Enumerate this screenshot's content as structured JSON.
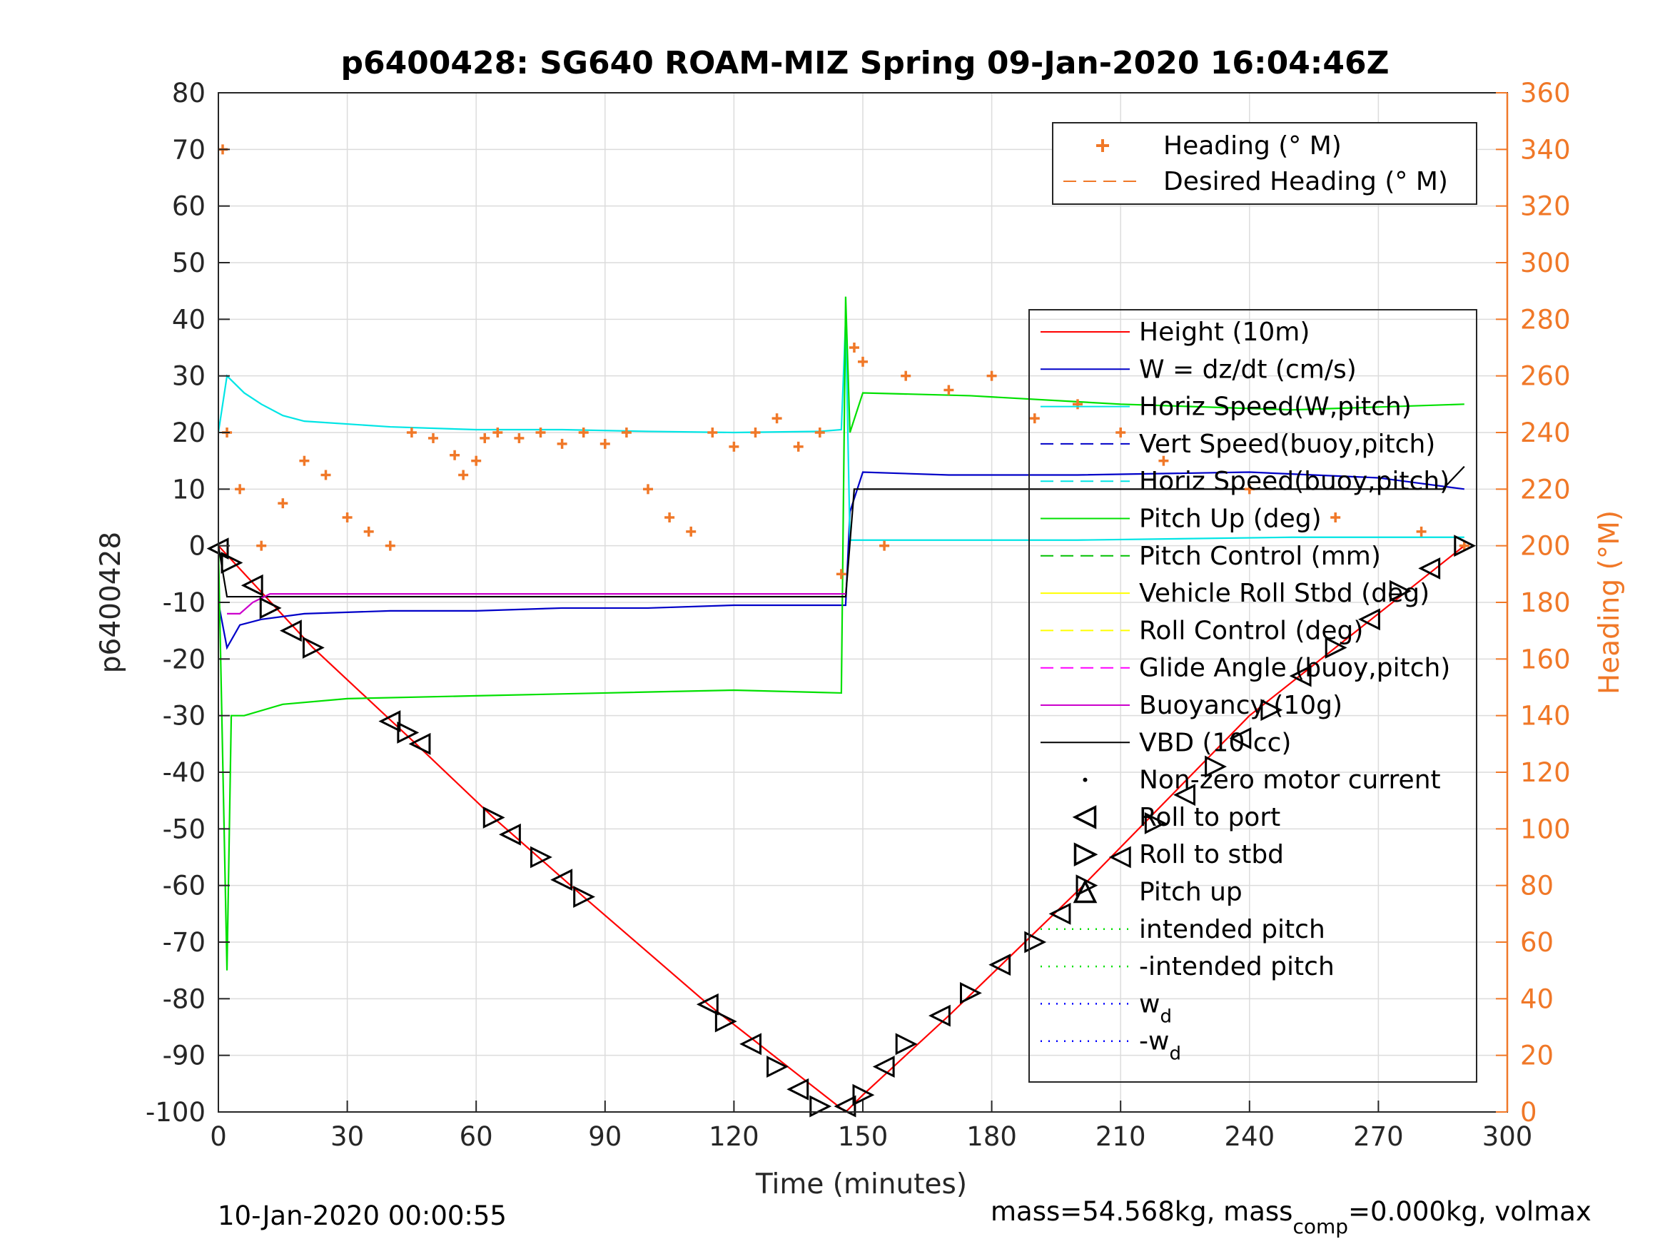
{
  "chart_data": {
    "type": "line",
    "title": "p6400428: SG640 ROAM-MIZ Spring 09-Jan-2020 16:04:46Z",
    "xlabel": "Time (minutes)",
    "ylabel": "p6400428",
    "ylabel_right": "Heading (°M)",
    "xlim": [
      0,
      300
    ],
    "ylim": [
      -100,
      80
    ],
    "ylim_right": [
      0,
      360
    ],
    "x_ticks": [
      "0",
      "30",
      "60",
      "90",
      "120",
      "150",
      "180",
      "210",
      "240",
      "270",
      "300"
    ],
    "y_ticks": [
      "80",
      "70",
      "60",
      "50",
      "40",
      "30",
      "20",
      "10",
      "0",
      "-10",
      "-20",
      "-30",
      "-40",
      "-50",
      "-60",
      "-70",
      "-80",
      "-90",
      "-100"
    ],
    "y_ticks_right": [
      "360",
      "340",
      "320",
      "300",
      "280",
      "260",
      "240",
      "220",
      "200",
      "180",
      "160",
      "140",
      "120",
      "100",
      "80",
      "60",
      "40",
      "20",
      "0"
    ],
    "grid": true,
    "footer_left": "10-Jan-2020 00:00:55",
    "footer_right_prefix": "mass=54.568kg, mass",
    "footer_right_sub": "comp",
    "footer_right_suffix": "=0.000kg, volmax",
    "legend_top": {
      "placement": "top-right",
      "entries": [
        {
          "label": "Heading (° M)",
          "color": "#f07828",
          "style": "plus"
        },
        {
          "label": "Desired Heading (° M)",
          "color": "#f07828",
          "style": "dashed"
        }
      ]
    },
    "legend_main": {
      "placement": "right",
      "entries": [
        {
          "label": "Height (10m)",
          "color": "#ff0000",
          "style": "solid"
        },
        {
          "label": "W = dz/dt (cm/s)",
          "color": "#0000c8",
          "style": "solid"
        },
        {
          "label": "Horiz Speed(W,pitch)",
          "color": "#00e5e5",
          "style": "solid"
        },
        {
          "label": "Vert Speed(buoy,pitch)",
          "color": "#0000c8",
          "style": "dashed"
        },
        {
          "label": "Horiz Speed(buoy,pitch)",
          "color": "#00e5e5",
          "style": "dashed"
        },
        {
          "label": "Pitch Up (deg)",
          "color": "#00e000",
          "style": "solid"
        },
        {
          "label": "Pitch Control (mm)",
          "color": "#00c000",
          "style": "dashed"
        },
        {
          "label": "Vehicle Roll Stbd (deg)",
          "color": "#ffff00",
          "style": "solid"
        },
        {
          "label": "Roll Control (deg)",
          "color": "#ffff00",
          "style": "dashed"
        },
        {
          "label": "Glide Angle (buoy,pitch)",
          "color": "#ff00ff",
          "style": "dashed"
        },
        {
          "label": "Buoyancy (10g)",
          "color": "#cc00cc",
          "style": "solid"
        },
        {
          "label": "VBD (10 cc)",
          "color": "#000000",
          "style": "solid"
        },
        {
          "label": "Non-zero motor current",
          "color": "#000000",
          "style": "dot"
        },
        {
          "label": "Roll to port",
          "color": "#000000",
          "style": "tri-left"
        },
        {
          "label": "Roll to stbd",
          "color": "#000000",
          "style": "tri-right"
        },
        {
          "label": "Pitch up",
          "color": "#000000",
          "style": "tri-up"
        },
        {
          "label": "intended pitch",
          "color": "#00e000",
          "style": "dotted"
        },
        {
          "label": "-intended pitch",
          "color": "#00e000",
          "style": "dotted"
        },
        {
          "label": "w",
          "sub": "d",
          "color": "#0000ff",
          "style": "dotted"
        },
        {
          "label": "-w",
          "sub": "d",
          "color": "#0000ff",
          "style": "dotted"
        }
      ]
    },
    "series": [
      {
        "name": "Height (10m)",
        "color": "#ff0000",
        "x": [
          0,
          22,
          46,
          64,
          85,
          114,
          146,
          150,
          170,
          200,
          240,
          290
        ],
        "y": [
          0,
          -18,
          -35,
          -48,
          -62,
          -81,
          -100,
          -97,
          -83,
          -61,
          -30,
          0
        ]
      },
      {
        "name": "W = dz/dt (cm/s)",
        "color": "#0000c8",
        "x": [
          0,
          2,
          5,
          10,
          20,
          40,
          60,
          80,
          100,
          120,
          140,
          146,
          147,
          150,
          170,
          200,
          240,
          270,
          290
        ],
        "y": [
          -10,
          -18,
          -14,
          -13,
          -12,
          -11.5,
          -11.5,
          -11,
          -11,
          -10.5,
          -10.5,
          -10.5,
          6,
          13,
          12.5,
          12.5,
          13,
          12,
          10
        ]
      },
      {
        "name": "Horiz Speed(W,pitch)",
        "color": "#00e5e5",
        "x": [
          0,
          2,
          6,
          10,
          15,
          20,
          40,
          60,
          80,
          100,
          120,
          140,
          145,
          146,
          147,
          150,
          200,
          250,
          290
        ],
        "y": [
          20,
          30,
          27,
          25,
          23,
          22,
          21,
          20.5,
          20.5,
          20.2,
          20,
          20.2,
          20.5,
          40,
          1,
          1,
          1,
          1.5,
          1.5
        ]
      },
      {
        "name": "Pitch Up (deg)",
        "color": "#00e000",
        "x": [
          0,
          2,
          3,
          6,
          15,
          30,
          60,
          90,
          120,
          145,
          146,
          147,
          150,
          175,
          210,
          250,
          290
        ],
        "y": [
          0,
          -75,
          -30,
          -30,
          -28,
          -27,
          -26.5,
          -26,
          -25.5,
          -26,
          44,
          20,
          27,
          26.5,
          25,
          24,
          25
        ]
      },
      {
        "name": "VBD (10 cc)",
        "color": "#000000",
        "x": [
          0,
          2,
          10,
          146,
          148,
          150,
          210,
          270,
          285,
          290
        ],
        "y": [
          0,
          -9,
          -9,
          -9,
          10,
          10,
          10,
          10,
          10,
          14
        ]
      },
      {
        "name": "Buoyancy (10g)",
        "color": "#cc00cc",
        "x": [
          2,
          5,
          8,
          12,
          40,
          80,
          120,
          146
        ],
        "y": [
          -12,
          -12,
          -10,
          -8.5,
          -8.5,
          -8.5,
          -8.5,
          -8.5
        ]
      },
      {
        "name": "Heading (° M)",
        "color": "#f07828",
        "x": [
          1,
          2,
          5,
          10,
          15,
          20,
          25,
          30,
          35,
          40,
          45,
          50,
          55,
          57,
          60,
          62,
          65,
          70,
          75,
          80,
          85,
          90,
          95,
          100,
          105,
          110,
          115,
          120,
          125,
          130,
          135,
          140,
          145,
          148,
          150,
          155,
          160,
          170,
          180,
          190,
          200,
          210,
          220,
          240,
          260,
          280,
          290
        ],
        "y": [
          340,
          240,
          220,
          200,
          215,
          230,
          225,
          210,
          205,
          200,
          240,
          238,
          232,
          225,
          230,
          238,
          240,
          238,
          240,
          236,
          240,
          236,
          240,
          220,
          210,
          205,
          240,
          235,
          240,
          245,
          235,
          240,
          190,
          270,
          265,
          200,
          260,
          255,
          260,
          245,
          250,
          240,
          230,
          220,
          210,
          205,
          200
        ]
      }
    ],
    "roll_events": {
      "x": [
        0,
        3,
        8,
        12,
        17,
        22,
        40,
        44,
        47,
        64,
        68,
        75,
        80,
        85,
        114,
        118,
        124,
        130,
        135,
        140,
        146,
        150,
        155,
        160,
        168,
        175,
        182,
        190,
        196,
        202,
        210,
        218,
        225,
        232,
        238,
        245,
        252,
        260,
        268,
        275,
        282,
        290
      ],
      "y": [
        -0.5,
        -3,
        -7,
        -11,
        -15,
        -18,
        -31,
        -33,
        -35,
        -48,
        -51,
        -55,
        -59,
        -62,
        -81,
        -84,
        -88,
        -92,
        -96,
        -99,
        -99,
        -97,
        -92,
        -88,
        -83,
        -79,
        -74,
        -70,
        -65,
        -60,
        -55,
        -49,
        -44,
        -39,
        -34,
        -29,
        -23,
        -18,
        -13,
        -8,
        -4,
        0
      ]
    }
  }
}
